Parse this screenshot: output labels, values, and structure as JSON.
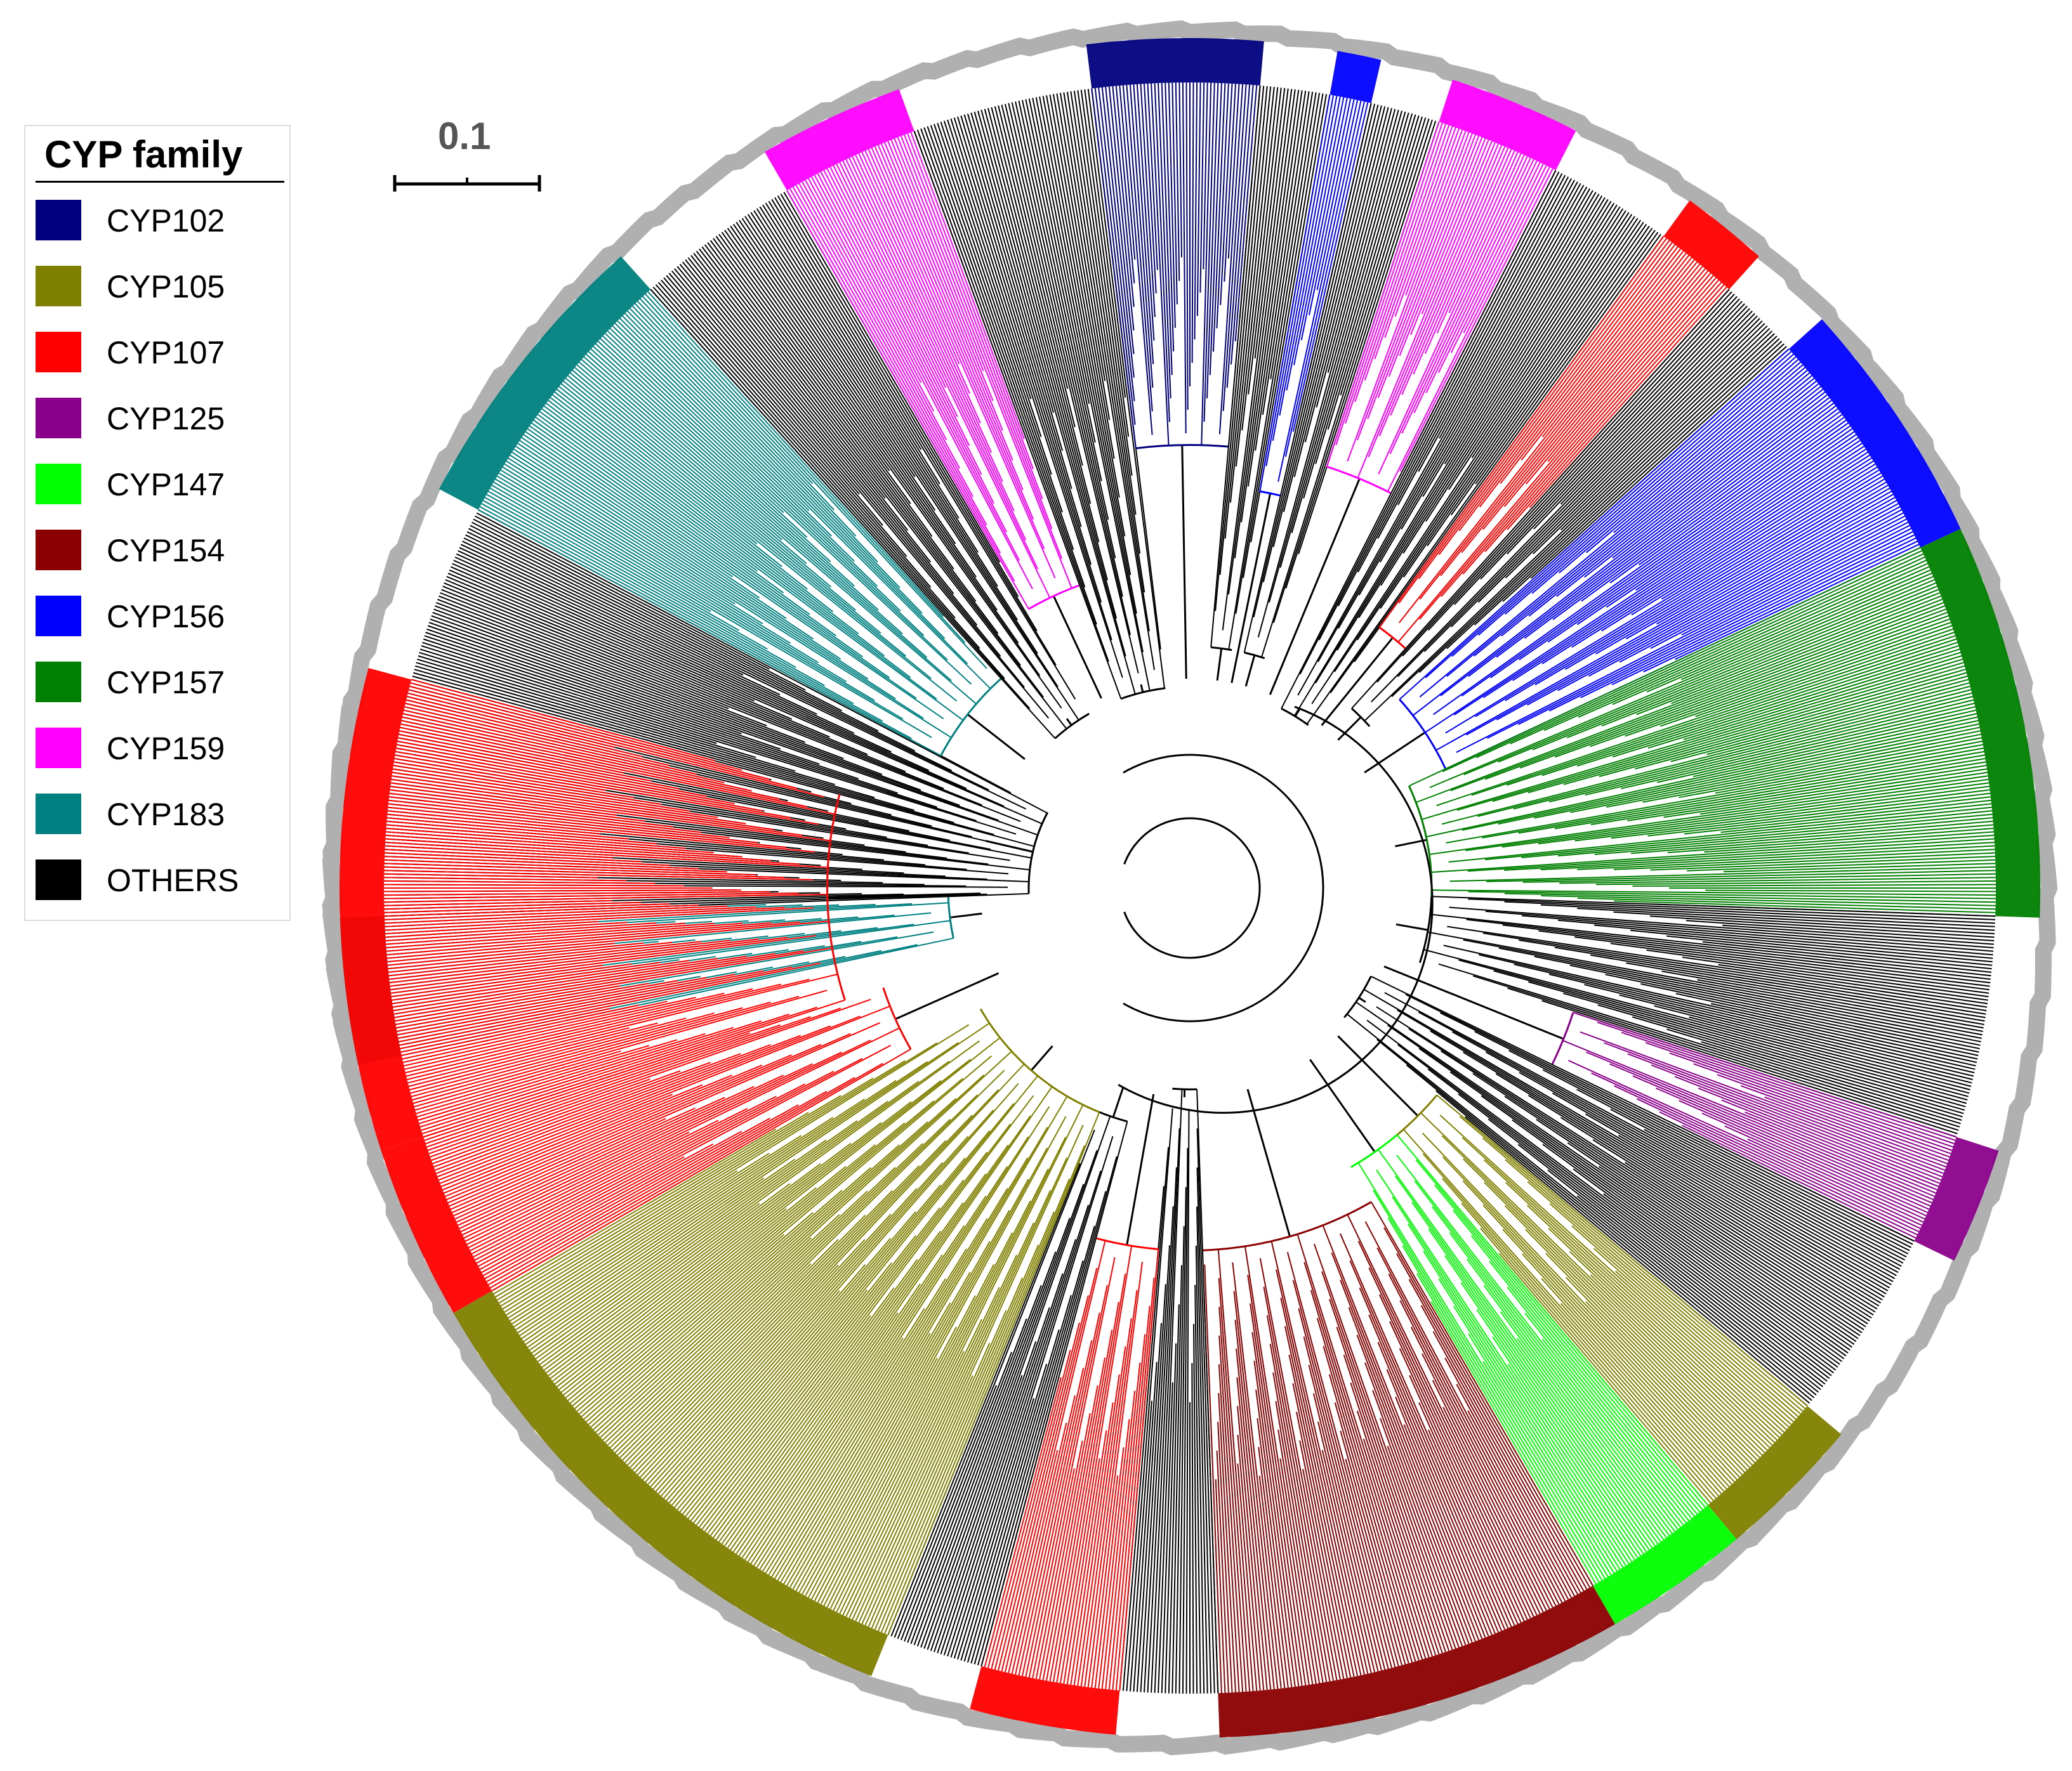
{
  "legend": {
    "title": "CYP family",
    "items": [
      {
        "label": "CYP102",
        "color": "#00007f"
      },
      {
        "label": "CYP105",
        "color": "#808000"
      },
      {
        "label": "CYP107",
        "color": "#ff0000"
      },
      {
        "label": "CYP125",
        "color": "#8b008b"
      },
      {
        "label": "CYP147",
        "color": "#00ff00"
      },
      {
        "label": "CYP154",
        "color": "#8b0000"
      },
      {
        "label": "CYP156",
        "color": "#0000ff"
      },
      {
        "label": "CYP157",
        "color": "#008000"
      },
      {
        "label": "CYP159",
        "color": "#ff00ff"
      },
      {
        "label": "CYP183",
        "color": "#008080"
      },
      {
        "label": "OTHERS",
        "color": "#000000"
      }
    ]
  },
  "scale_bar": {
    "label": "0.1",
    "value": 0.1
  },
  "clades": [
    {
      "family": "CYP183",
      "start": 168,
      "end": 178,
      "depth": 0.3
    },
    {
      "family": "OTHERS",
      "start": 178,
      "end": 208,
      "depth": 0.2
    },
    {
      "family": "CYP183",
      "start": 208,
      "end": 228,
      "depth": 0.35
    },
    {
      "family": "OTHERS",
      "start": 228,
      "end": 240,
      "depth": 0.25
    },
    {
      "family": "CYP159",
      "start": 240,
      "end": 250,
      "depth": 0.4
    },
    {
      "family": "OTHERS",
      "start": 250,
      "end": 263,
      "depth": 0.25
    },
    {
      "family": "CYP102",
      "start": 263,
      "end": 275,
      "depth": 0.55
    },
    {
      "family": "OTHERS",
      "start": 275,
      "end": 280,
      "depth": 0.3
    },
    {
      "family": "CYP156",
      "start": 280,
      "end": 283,
      "depth": 0.5
    },
    {
      "family": "OTHERS",
      "start": 283,
      "end": 288,
      "depth": 0.3
    },
    {
      "family": "CYP159",
      "start": 288,
      "end": 297,
      "depth": 0.55
    },
    {
      "family": "OTHERS",
      "start": 297,
      "end": 306,
      "depth": 0.25
    },
    {
      "family": "CYP107",
      "start": 306,
      "end": 312,
      "depth": 0.4
    },
    {
      "family": "OTHERS",
      "start": 312,
      "end": 318,
      "depth": 0.3
    },
    {
      "family": "CYP156",
      "start": 318,
      "end": 335,
      "depth": 0.35
    },
    {
      "family": "CYP157",
      "start": 335,
      "end": 362,
      "depth": 0.3
    },
    {
      "family": "OTHERS",
      "start": 362,
      "end": 378,
      "depth": 0.3
    },
    {
      "family": "CYP125",
      "start": 378,
      "end": 386,
      "depth": 0.5
    },
    {
      "family": "OTHERS",
      "start": 386,
      "end": 400,
      "depth": 0.25
    },
    {
      "family": "CYP105",
      "start": 400,
      "end": 410,
      "depth": 0.4
    },
    {
      "family": "CYP147",
      "start": 410,
      "end": 420,
      "depth": 0.4
    },
    {
      "family": "CYP154",
      "start": 420,
      "end": 448,
      "depth": 0.45
    },
    {
      "family": "OTHERS",
      "start": 448,
      "end": 455,
      "depth": 0.25
    },
    {
      "family": "CYP107",
      "start": 455,
      "end": 465,
      "depth": 0.45
    },
    {
      "family": "OTHERS",
      "start": 465,
      "end": 472,
      "depth": 0.3
    },
    {
      "family": "CYP105",
      "start": 472,
      "end": 510,
      "depth": 0.3
    },
    {
      "family": "CYP107",
      "start": 510,
      "end": 522,
      "depth": 0.4
    },
    {
      "family": "CYP107",
      "start": 522,
      "end": 555,
      "depth": 0.45
    }
  ]
}
